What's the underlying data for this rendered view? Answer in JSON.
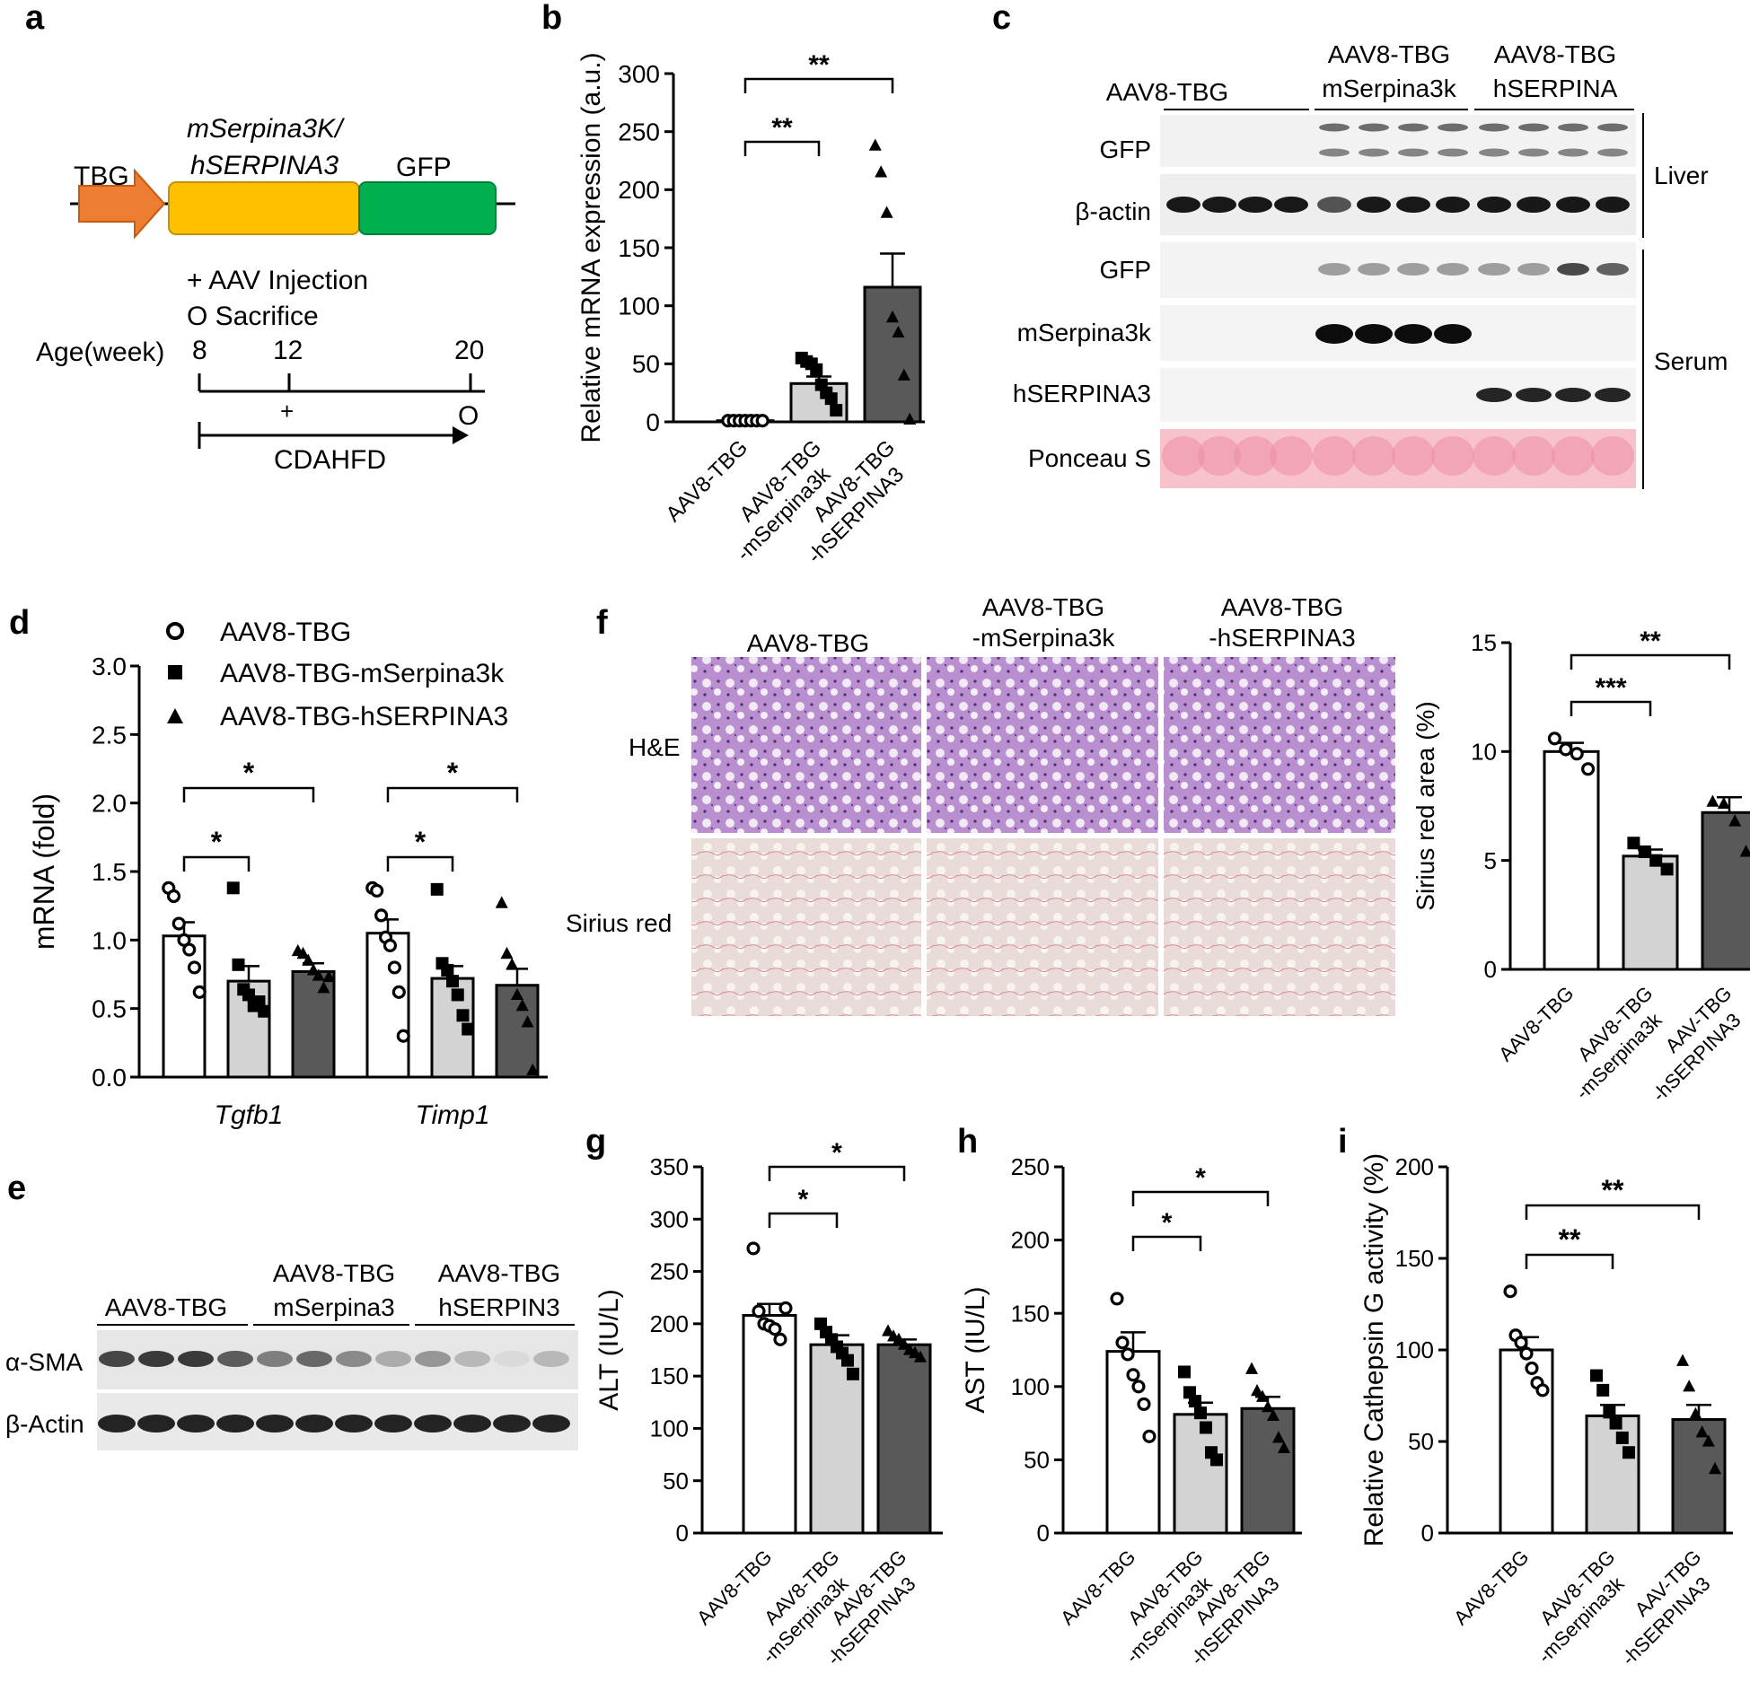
{
  "panel_letters": [
    "a",
    "b",
    "c",
    "d",
    "e",
    "f",
    "g",
    "h",
    "i"
  ],
  "construct": {
    "promoter": "TBG",
    "gene_line1": "mSerpina3K/",
    "gene_line2": "hSERPINA3",
    "reporter": "GFP",
    "legend_injection": "+ AAV Injection",
    "legend_sacrifice": "O Sacrifice",
    "age_label": "Age(week)",
    "ages": [
      "8",
      "12",
      "20"
    ],
    "injection_mark": "+",
    "sacrifice_mark": "O",
    "diet": "CDAHFD"
  },
  "blot_c": {
    "groups": [
      {
        "line1": "AAV8-TBG",
        "line2": ""
      },
      {
        "line1": "AAV8-TBG",
        "line2": "mSerpina3k"
      },
      {
        "line1": "AAV8-TBG",
        "line2": "hSERPINA"
      }
    ],
    "rows": [
      "GFP",
      "β-actin",
      "GFP",
      "mSerpina3k",
      "hSERPINA3",
      "Ponceau S"
    ],
    "tissues": [
      "Liver",
      "Serum"
    ]
  },
  "blot_e": {
    "groups": [
      {
        "line1": "AAV8-TBG",
        "line2": ""
      },
      {
        "line1": "AAV8-TBG",
        "line2": "mSerpina3"
      },
      {
        "line1": "AAV8-TBG",
        "line2": "hSERPIN3"
      }
    ],
    "rows": [
      "α-SMA",
      "β-Actin"
    ]
  },
  "histology_f": {
    "columns": [
      {
        "line1": "AAV8-TBG",
        "line2": ""
      },
      {
        "line1": "AAV8-TBG",
        "line2": "-mSerpina3k"
      },
      {
        "line1": "AAV8-TBG",
        "line2": "-hSERPINA3"
      }
    ],
    "rows": [
      "H&E",
      "Sirius red"
    ],
    "colors": {
      "he": "#b689cc",
      "sirius": "#ebe0dc"
    }
  },
  "colors": {
    "open": "#ffffff",
    "light": "#d3d3d3",
    "dark": "#595959",
    "arrow": "#ed7d31",
    "gene": "#ffc000",
    "gfp": "#00b050"
  },
  "chart_data": [
    {
      "panel": "b",
      "type": "bar",
      "ylabel": "Relative mRNA expression (a.u.)",
      "ylim": [
        0,
        300
      ],
      "yticks": [
        0,
        50,
        100,
        150,
        200,
        250,
        300
      ],
      "categories": [
        {
          "line1": "AAV8-TBG",
          "line2": ""
        },
        {
          "line1": "AAV8-TBG",
          "line2": "-mSerpina3k"
        },
        {
          "line1": "AAV8-TBG",
          "line2": "-hSERPINA3"
        }
      ],
      "values": [
        1,
        33,
        116
      ],
      "errors": [
        0.5,
        6,
        29
      ],
      "fills": [
        "open",
        "light",
        "dark"
      ],
      "markers": [
        "circle",
        "square",
        "triangle"
      ],
      "points": [
        [
          1,
          1,
          1,
          1,
          1,
          1,
          1
        ],
        [
          55,
          52,
          50,
          45,
          32,
          25,
          20,
          10
        ],
        [
          238,
          215,
          180,
          90,
          77,
          40,
          2
        ]
      ],
      "brackets": [
        {
          "from": 0,
          "to": 1,
          "label": "**"
        },
        {
          "from": 0,
          "to": 2,
          "label": "**"
        }
      ]
    },
    {
      "panel": "d",
      "type": "bar",
      "ylabel": "mRNA (fold)",
      "ylim": [
        0,
        3
      ],
      "yticks": [
        "0.0",
        "0.5",
        "1.0",
        "1.5",
        "2.0",
        "2.5",
        "3.0"
      ],
      "genes": [
        "Tgfb1",
        "Timp1"
      ],
      "series": [
        {
          "name": "AAV8-TBG",
          "marker": "circle",
          "fill": "open"
        },
        {
          "name": "AAV8-TBG-mSerpina3k",
          "marker": "square",
          "fill": "light"
        },
        {
          "name": "AAV8-TBG-hSERPINA3",
          "marker": "triangle",
          "fill": "dark"
        }
      ],
      "values": [
        [
          1.03,
          0.7,
          0.77
        ],
        [
          1.05,
          0.72,
          0.67
        ]
      ],
      "errors": [
        [
          0.1,
          0.11,
          0.06
        ],
        [
          0.1,
          0.09,
          0.12
        ]
      ],
      "points": [
        [
          [
            1.38,
            1.32,
            1.12,
            1.0,
            0.93,
            0.8,
            0.62
          ],
          [
            1.38,
            0.82,
            0.64,
            0.6,
            0.52,
            0.55,
            0.48
          ],
          [
            0.92,
            0.9,
            0.85,
            0.78,
            0.74,
            0.65,
            0.73
          ]
        ],
        [
          [
            1.38,
            1.36,
            1.18,
            1.02,
            0.96,
            0.8,
            0.62,
            0.3
          ],
          [
            1.37,
            0.83,
            0.78,
            0.7,
            0.6,
            0.45,
            0.35
          ],
          [
            1.27,
            0.9,
            0.82,
            0.6,
            0.52,
            0.4,
            0.05
          ]
        ]
      ],
      "brackets": [
        [
          {
            "from": 0,
            "to": 1,
            "label": "*"
          },
          {
            "from": 0,
            "to": 2,
            "label": "*"
          }
        ],
        [
          {
            "from": 0,
            "to": 1,
            "label": "*"
          },
          {
            "from": 0,
            "to": 2,
            "label": "*"
          }
        ]
      ]
    },
    {
      "panel": "f",
      "type": "bar",
      "ylabel": "Sirius red area (%)",
      "ylim": [
        0,
        15
      ],
      "yticks": [
        0,
        5,
        10,
        15
      ],
      "categories": [
        {
          "line1": "AAV8-TBG",
          "line2": ""
        },
        {
          "line1": "AAV8-TBG",
          "line2": "-mSerpina3k"
        },
        {
          "line1": "AAV-TBG",
          "line2": "-hSERPINA3"
        }
      ],
      "values": [
        10.0,
        5.2,
        7.2
      ],
      "errors": [
        0.4,
        0.3,
        0.7
      ],
      "fills": [
        "open",
        "light",
        "dark"
      ],
      "markers": [
        "circle",
        "square",
        "triangle"
      ],
      "points": [
        [
          10.6,
          10.1,
          9.9,
          9.2
        ],
        [
          5.8,
          5.4,
          5.0,
          4.6
        ],
        [
          7.7,
          7.6,
          6.8,
          5.4
        ]
      ],
      "brackets": [
        {
          "from": 0,
          "to": 1,
          "label": "***"
        },
        {
          "from": 0,
          "to": 2,
          "label": "**"
        }
      ]
    },
    {
      "panel": "g",
      "type": "bar",
      "ylabel": "ALT (IU/L)",
      "ylim": [
        0,
        350
      ],
      "yticks": [
        0,
        50,
        100,
        150,
        200,
        250,
        300,
        350
      ],
      "categories": [
        {
          "line1": "AAV8-TBG",
          "line2": ""
        },
        {
          "line1": "AAV8-TBG",
          "line2": "-mSerpina3k"
        },
        {
          "line1": "AAV8-TBG",
          "line2": "-hSERPINA3"
        }
      ],
      "values": [
        208,
        180,
        180
      ],
      "errors": [
        11,
        9,
        5
      ],
      "fills": [
        "open",
        "light",
        "dark"
      ],
      "markers": [
        "circle",
        "square",
        "triangle"
      ],
      "points": [
        [
          272,
          212,
          200,
          198,
          195,
          185,
          215
        ],
        [
          200,
          192,
          185,
          178,
          172,
          165,
          152
        ],
        [
          193,
          188,
          185,
          180,
          175,
          172,
          168
        ]
      ],
      "brackets": [
        {
          "from": 0,
          "to": 1,
          "label": "*"
        },
        {
          "from": 0,
          "to": 2,
          "label": "*"
        }
      ]
    },
    {
      "panel": "h",
      "type": "bar",
      "ylabel": "AST (IU/L)",
      "ylim": [
        0,
        250
      ],
      "yticks": [
        0,
        50,
        100,
        150,
        200,
        250
      ],
      "categories": [
        {
          "line1": "AAV8-TBG",
          "line2": ""
        },
        {
          "line1": "AAV8-TBG",
          "line2": "-mSerpina3k"
        },
        {
          "line1": "AAV8-TBG",
          "line2": "-hSERPINA3"
        }
      ],
      "values": [
        124,
        81,
        85
      ],
      "errors": [
        13,
        8,
        8
      ],
      "fills": [
        "open",
        "light",
        "dark"
      ],
      "markers": [
        "circle",
        "square",
        "triangle"
      ],
      "points": [
        [
          160,
          130,
          122,
          108,
          100,
          88,
          66
        ],
        [
          110,
          96,
          90,
          82,
          72,
          55,
          50
        ],
        [
          112,
          97,
          93,
          86,
          80,
          65,
          58
        ]
      ],
      "brackets": [
        {
          "from": 0,
          "to": 1,
          "label": "*"
        },
        {
          "from": 0,
          "to": 2,
          "label": "*"
        }
      ]
    },
    {
      "panel": "i",
      "type": "bar",
      "ylabel": "Relative Cathepsin G activity (%)",
      "ylim": [
        0,
        200
      ],
      "yticks": [
        0,
        50,
        100,
        150,
        200
      ],
      "categories": [
        {
          "line1": "AAV8-TBG",
          "line2": ""
        },
        {
          "line1": "AAV8-TBG",
          "line2": "-mSerpina3k"
        },
        {
          "line1": "AAV-TBG",
          "line2": "-hSERPINA3"
        }
      ],
      "values": [
        100,
        64,
        62
      ],
      "errors": [
        7,
        6,
        8
      ],
      "fills": [
        "open",
        "light",
        "dark"
      ],
      "markers": [
        "circle",
        "square",
        "triangle"
      ],
      "points": [
        [
          132,
          108,
          104,
          98,
          90,
          82,
          78
        ],
        [
          86,
          78,
          66,
          60,
          52,
          44
        ],
        [
          94,
          80,
          65,
          55,
          50,
          35
        ]
      ],
      "brackets": [
        {
          "from": 0,
          "to": 1,
          "label": "**"
        },
        {
          "from": 0,
          "to": 2,
          "label": "**"
        }
      ]
    }
  ]
}
